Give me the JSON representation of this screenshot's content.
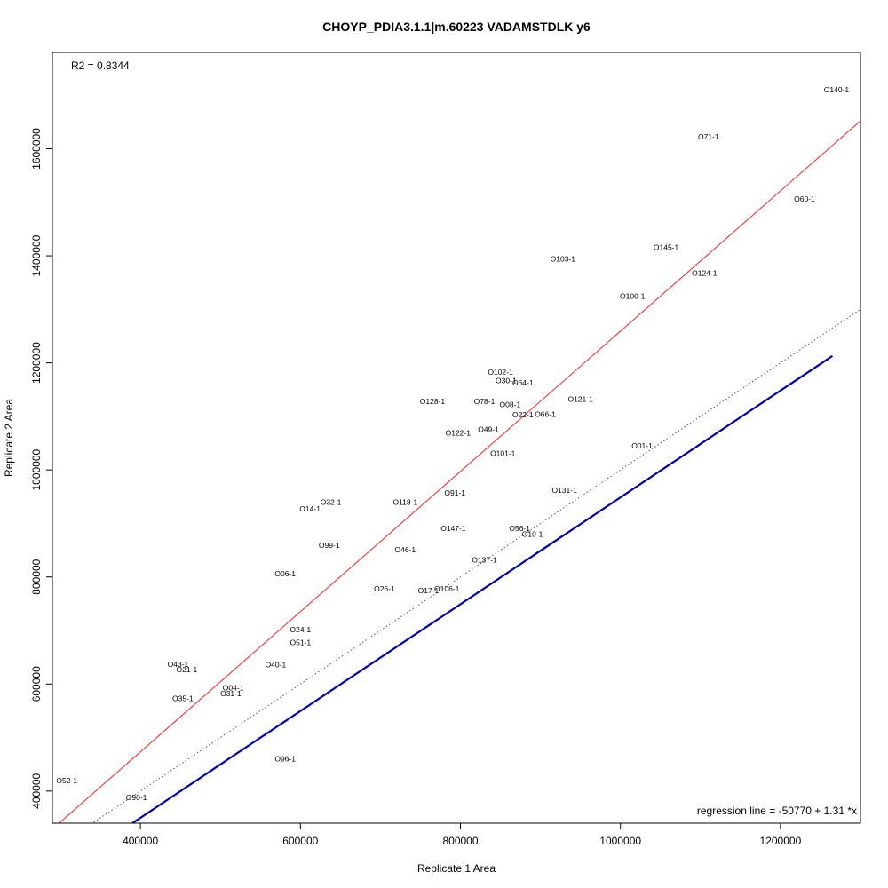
{
  "chart_data": {
    "type": "scatter",
    "title": "CHOYP_PDIA3.1.1|m.60223 VADAMSTDLK y6",
    "xlabel": "Replicate 1 Area",
    "ylabel": "Replicate 2 Area",
    "xlim": [
      290000,
      1300000
    ],
    "ylim": [
      340000,
      1780000
    ],
    "x_ticks": [
      400000,
      600000,
      800000,
      1000000,
      1200000
    ],
    "y_ticks": [
      400000,
      600000,
      800000,
      1000000,
      1200000,
      1400000,
      1600000
    ],
    "x_tick_labels": [
      "400000",
      "600000",
      "800000",
      "1000000",
      "1200000"
    ],
    "y_tick_labels": [
      "400000",
      "600000",
      "800000",
      "1000000",
      "1200000",
      "1400000",
      "1600000"
    ],
    "r2_label": "R2 = 0.8344",
    "regression_label": "regression line = -50770 + 1.31 *x",
    "regression_line": {
      "intercept": -50770,
      "slope": 1.31,
      "color": "#ef4444"
    },
    "identity_line": {
      "intercept": 0,
      "slope": 1,
      "style": "dotted",
      "color": "#555555"
    },
    "blue_line": {
      "x": [
        390000,
        1265000
      ],
      "y": [
        340000,
        1213000
      ],
      "color": "#0000a8"
    },
    "points": [
      {
        "label": "O140-1",
        "x": 1270000,
        "y": 1710000
      },
      {
        "label": "O71-1",
        "x": 1110000,
        "y": 1622000
      },
      {
        "label": "O60-1",
        "x": 1230000,
        "y": 1506000
      },
      {
        "label": "O145-1",
        "x": 1057000,
        "y": 1416000
      },
      {
        "label": "O103-1",
        "x": 928000,
        "y": 1394000
      },
      {
        "label": "O124-1",
        "x": 1105000,
        "y": 1368000
      },
      {
        "label": "O100-1",
        "x": 1015000,
        "y": 1325000
      },
      {
        "label": "O102-1",
        "x": 850000,
        "y": 1183000
      },
      {
        "label": "O30-1",
        "x": 857000,
        "y": 1167000
      },
      {
        "label": "O64-1",
        "x": 878000,
        "y": 1163000
      },
      {
        "label": "O128-1",
        "x": 765000,
        "y": 1128000
      },
      {
        "label": "O78-1",
        "x": 830000,
        "y": 1128000
      },
      {
        "label": "O121-1",
        "x": 950000,
        "y": 1132000
      },
      {
        "label": "O08-1",
        "x": 862000,
        "y": 1122000
      },
      {
        "label": "O22-1",
        "x": 878000,
        "y": 1103000
      },
      {
        "label": "O66-1",
        "x": 906000,
        "y": 1104000
      },
      {
        "label": "O49-1",
        "x": 835000,
        "y": 1076000
      },
      {
        "label": "O122-1",
        "x": 797000,
        "y": 1069000
      },
      {
        "label": "O01-1",
        "x": 1027000,
        "y": 1045000
      },
      {
        "label": "O101-1",
        "x": 853000,
        "y": 1031000
      },
      {
        "label": "O131-1",
        "x": 930000,
        "y": 962000
      },
      {
        "label": "O91-1",
        "x": 793000,
        "y": 957000
      },
      {
        "label": "O32-1",
        "x": 638000,
        "y": 940000
      },
      {
        "label": "O118-1",
        "x": 731000,
        "y": 940000
      },
      {
        "label": "O14-1",
        "x": 612000,
        "y": 927000
      },
      {
        "label": "O147-1",
        "x": 791000,
        "y": 891000
      },
      {
        "label": "O56-1",
        "x": 874000,
        "y": 891000
      },
      {
        "label": "O10-1",
        "x": 890000,
        "y": 880000
      },
      {
        "label": "O99-1",
        "x": 636000,
        "y": 859000
      },
      {
        "label": "O46-1",
        "x": 731000,
        "y": 851000
      },
      {
        "label": "O137-1",
        "x": 830000,
        "y": 832000
      },
      {
        "label": "O06-1",
        "x": 581000,
        "y": 806000
      },
      {
        "label": "O26-1",
        "x": 705000,
        "y": 778000
      },
      {
        "label": "O17-1",
        "x": 760000,
        "y": 775000
      },
      {
        "label": "O106-1",
        "x": 783000,
        "y": 778000
      },
      {
        "label": "O24-1",
        "x": 600000,
        "y": 702000
      },
      {
        "label": "O51-1",
        "x": 600000,
        "y": 678000
      },
      {
        "label": "O40-1",
        "x": 569000,
        "y": 636000
      },
      {
        "label": "O43-1",
        "x": 447000,
        "y": 637000
      },
      {
        "label": "O21-1",
        "x": 458000,
        "y": 627000
      },
      {
        "label": "O04-1",
        "x": 516000,
        "y": 593000
      },
      {
        "label": "O31-1",
        "x": 513000,
        "y": 582000
      },
      {
        "label": "O35-1",
        "x": 453000,
        "y": 573000
      },
      {
        "label": "O96-1",
        "x": 581000,
        "y": 460000
      },
      {
        "label": "O52-1",
        "x": 308000,
        "y": 420000
      },
      {
        "label": "O90-1",
        "x": 395000,
        "y": 388000
      }
    ]
  }
}
